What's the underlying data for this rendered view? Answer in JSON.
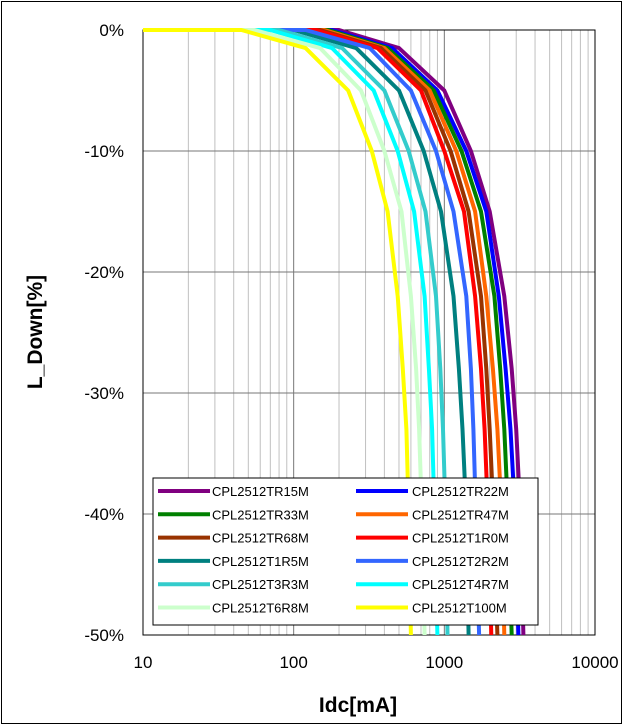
{
  "chart_data": {
    "type": "line",
    "title": "",
    "xlabel": "Idc[mA]",
    "ylabel": "L_Down[%]",
    "x_scale": "log",
    "xlim": [
      10,
      10000
    ],
    "ylim": [
      -50,
      0
    ],
    "x_ticks": [
      "10",
      "100",
      "1000",
      "10000"
    ],
    "y_ticks": [
      "0%",
      "-10%",
      "-20%",
      "-30%",
      "-40%",
      "-50%"
    ],
    "grid": true,
    "legend_position": "bottom-center",
    "series": [
      {
        "name": "CPL2512TR15M",
        "color": "#800080",
        "x": [
          10,
          200,
          500,
          1000,
          1500,
          2000,
          2500,
          2800,
          3000,
          3200,
          3350
        ],
        "y": [
          0,
          0,
          -1.5,
          -5,
          -10,
          -15,
          -22,
          -28,
          -33,
          -40,
          -50
        ]
      },
      {
        "name": "CPL2512TR22M",
        "color": "#0000FF",
        "x": [
          10,
          180,
          450,
          900,
          1400,
          1900,
          2300,
          2550,
          2750,
          2950,
          3100
        ],
        "y": [
          0,
          0,
          -1.5,
          -5,
          -10,
          -15,
          -22,
          -28,
          -33,
          -40,
          -50
        ]
      },
      {
        "name": "CPL2512TR33M",
        "color": "#008000",
        "x": [
          10,
          170,
          420,
          850,
          1300,
          1750,
          2150,
          2350,
          2500,
          2650,
          2800
        ],
        "y": [
          0,
          0,
          -1.5,
          -5,
          -10,
          -15,
          -22,
          -28,
          -33,
          -40,
          -50
        ]
      },
      {
        "name": "CPL2512TR47M",
        "color": "#FF6600",
        "x": [
          10,
          160,
          400,
          800,
          1200,
          1600,
          1900,
          2100,
          2250,
          2400,
          2500
        ],
        "y": [
          0,
          0,
          -1.5,
          -5,
          -10,
          -15,
          -22,
          -28,
          -33,
          -40,
          -50
        ]
      },
      {
        "name": "CPL2512TR68M",
        "color": "#993300",
        "x": [
          10,
          150,
          380,
          750,
          1100,
          1450,
          1750,
          1900,
          2000,
          2120,
          2250
        ],
        "y": [
          0,
          0,
          -1.5,
          -5,
          -10,
          -15,
          -22,
          -28,
          -33,
          -40,
          -50
        ]
      },
      {
        "name": "CPL2512T1R0M",
        "color": "#FF0000",
        "x": [
          10,
          140,
          360,
          700,
          1000,
          1350,
          1600,
          1750,
          1850,
          1950,
          2050
        ],
        "y": [
          0,
          0,
          -1.5,
          -5,
          -10,
          -15,
          -22,
          -28,
          -33,
          -40,
          -50
        ]
      },
      {
        "name": "CPL2512T1R5M",
        "color": "#008080",
        "x": [
          10,
          100,
          260,
          500,
          730,
          950,
          1150,
          1250,
          1320,
          1400,
          1450
        ],
        "y": [
          0,
          0,
          -1.5,
          -5,
          -10,
          -15,
          -22,
          -28,
          -33,
          -40,
          -50
        ]
      },
      {
        "name": "CPL2512T2R2M",
        "color": "#3366FF",
        "x": [
          10,
          120,
          320,
          600,
          880,
          1150,
          1400,
          1500,
          1560,
          1620,
          1700
        ],
        "y": [
          0,
          0,
          -1.5,
          -5,
          -10,
          -15,
          -22,
          -28,
          -33,
          -40,
          -50
        ]
      },
      {
        "name": "CPL2512T3R3M",
        "color": "#33CCCC",
        "x": [
          10,
          80,
          210,
          400,
          580,
          750,
          880,
          940,
          980,
          1020,
          1050
        ],
        "y": [
          0,
          0,
          -1.5,
          -5,
          -10,
          -15,
          -22,
          -28,
          -33,
          -40,
          -50
        ]
      },
      {
        "name": "CPL2512T4R7M",
        "color": "#00FFFF",
        "x": [
          10,
          70,
          180,
          340,
          490,
          630,
          740,
          790,
          830,
          860,
          900
        ],
        "y": [
          0,
          0,
          -1.5,
          -5,
          -10,
          -15,
          -22,
          -28,
          -33,
          -40,
          -50
        ]
      },
      {
        "name": "CPL2512T6R8M",
        "color": "#CCFFCC",
        "x": [
          10,
          55,
          150,
          280,
          400,
          520,
          600,
          650,
          680,
          710,
          740
        ],
        "y": [
          0,
          0,
          -1.5,
          -5,
          -10,
          -15,
          -22,
          -28,
          -33,
          -40,
          -50
        ]
      },
      {
        "name": "CPL2512T100M",
        "color": "#FFFF00",
        "x": [
          10,
          45,
          120,
          230,
          330,
          420,
          490,
          530,
          560,
          580,
          600
        ],
        "y": [
          0,
          0,
          -1.5,
          -5,
          -10,
          -15,
          -22,
          -28,
          -33,
          -40,
          -50
        ]
      }
    ]
  }
}
